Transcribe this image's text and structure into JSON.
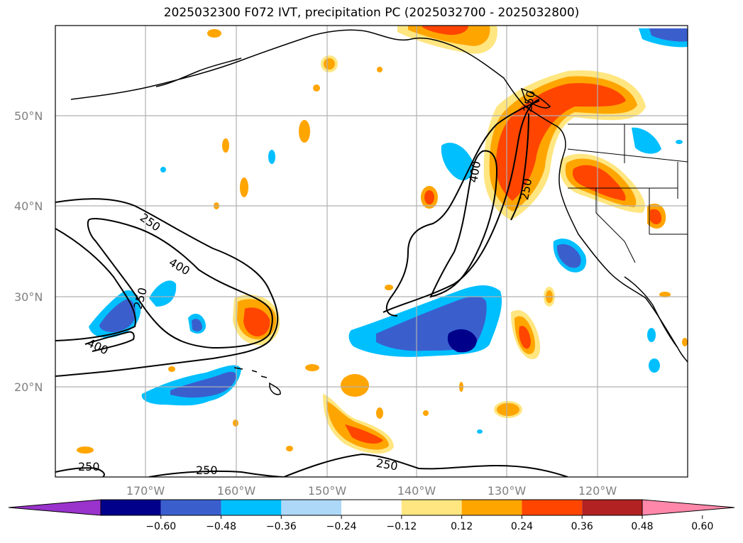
{
  "title": "2025032300 F072 IVT, precipitation PC (2025032700 - 2025032800)",
  "map": {
    "lat_ticks": [
      "20°N",
      "30°N",
      "40°N",
      "50°N"
    ],
    "lon_ticks": [
      "170°W",
      "160°W",
      "150°W",
      "140°W",
      "130°W",
      "120°W"
    ],
    "grid": true
  },
  "ivt_contours": {
    "levels": [
      250,
      400
    ],
    "labels": [
      "250",
      "400",
      "250",
      "400",
      "250",
      "400",
      "250",
      "250",
      "250",
      "250"
    ]
  },
  "colorbar": {
    "ticks": [
      "−0.60",
      "−0.48",
      "−0.36",
      "−0.24",
      "−0.12",
      "0.12",
      "0.24",
      "0.36",
      "0.48",
      "0.60"
    ],
    "colors": [
      "#9933cc",
      "#00008b",
      "#3a5fcd",
      "#00bfff",
      "#add8f8",
      "#ffffff",
      "#ffe680",
      "#ffa500",
      "#ff4500",
      "#b22222",
      "#ff88aa"
    ]
  },
  "chart_data": {
    "type": "heatmap",
    "title": "2025032300 F072 IVT, precipitation PC (2025032700 - 2025032800)",
    "xlabel": "",
    "ylabel": "",
    "x_ticks": [
      "170°W",
      "160°W",
      "150°W",
      "140°W",
      "130°W",
      "120°W"
    ],
    "y_ticks": [
      "20°N",
      "30°N",
      "40°N",
      "50°N"
    ],
    "colorbar_ticks": [
      -0.6,
      -0.48,
      -0.36,
      -0.24,
      -0.12,
      0.12,
      0.24,
      0.36,
      0.48,
      0.6
    ],
    "contour_levels": [
      250,
      400
    ]
  }
}
